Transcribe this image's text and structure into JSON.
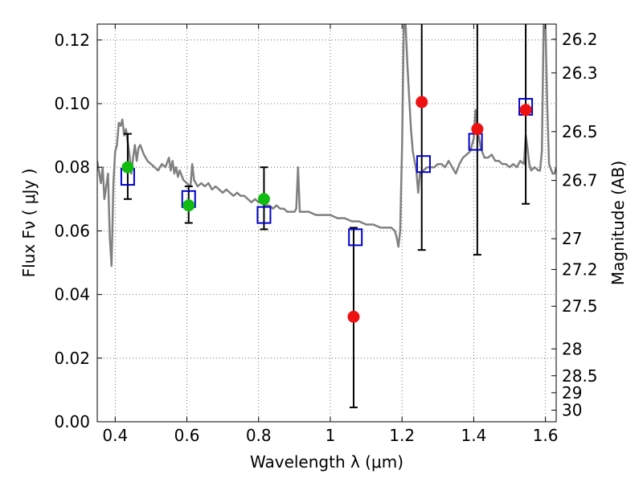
{
  "chart_data": {
    "type": "scatter",
    "xlabel": "Wavelength  λ (μm)",
    "ylabel": "Flux  Fν  ( μJy )",
    "y2label": "Magnitude (AB)",
    "xlim": [
      0.35,
      1.63
    ],
    "ylim": [
      0.0,
      0.125
    ],
    "grid": true,
    "x_ticks": [
      0.4,
      0.6,
      0.8,
      1.0,
      1.2,
      1.4,
      1.6
    ],
    "x_tick_labels": [
      "0.4",
      "0.6",
      "0.8",
      "1",
      "1.2",
      "1.4",
      "1.6"
    ],
    "y_ticks": [
      0.0,
      0.02,
      0.04,
      0.06,
      0.08,
      0.1,
      0.12
    ],
    "y_tick_labels": [
      "0.00",
      "0.02",
      "0.04",
      "0.06",
      "0.08",
      "0.10",
      "0.12"
    ],
    "magnitude_ticks": [
      {
        "label": "26.2",
        "mag": 26.2
      },
      {
        "label": "26.3",
        "mag": 26.3
      },
      {
        "label": "26.5",
        "mag": 26.5
      },
      {
        "label": "26.7",
        "mag": 26.7
      },
      {
        "label": "27",
        "mag": 27.0
      },
      {
        "label": "27.2",
        "mag": 27.2
      },
      {
        "label": "27.5",
        "mag": 27.5
      },
      {
        "label": "28",
        "mag": 28.0
      },
      {
        "label": "28.5",
        "mag": 28.5
      },
      {
        "label": "29",
        "mag": 29.0
      },
      {
        "label": "30",
        "mag": 30.0
      }
    ],
    "colors": {
      "model": "#808080",
      "model_points": "#0000cc",
      "optical_detections": "#11bb11",
      "nir_detections": "#ee1111",
      "errorbar": "#000000",
      "grid": "#555555"
    },
    "model_spectrum": [
      [
        0.35,
        0.082
      ],
      [
        0.36,
        0.075
      ],
      [
        0.365,
        0.08
      ],
      [
        0.37,
        0.07
      ],
      [
        0.38,
        0.078
      ],
      [
        0.385,
        0.058
      ],
      [
        0.39,
        0.049
      ],
      [
        0.395,
        0.075
      ],
      [
        0.4,
        0.085
      ],
      [
        0.405,
        0.087
      ],
      [
        0.41,
        0.094
      ],
      [
        0.415,
        0.093
      ],
      [
        0.42,
        0.095
      ],
      [
        0.425,
        0.09
      ],
      [
        0.43,
        0.092
      ],
      [
        0.435,
        0.088
      ],
      [
        0.44,
        0.084
      ],
      [
        0.445,
        0.078
      ],
      [
        0.45,
        0.083
      ],
      [
        0.455,
        0.087
      ],
      [
        0.46,
        0.082
      ],
      [
        0.465,
        0.086
      ],
      [
        0.47,
        0.087
      ],
      [
        0.48,
        0.084
      ],
      [
        0.49,
        0.082
      ],
      [
        0.5,
        0.081
      ],
      [
        0.51,
        0.08
      ],
      [
        0.52,
        0.079
      ],
      [
        0.53,
        0.081
      ],
      [
        0.54,
        0.08
      ],
      [
        0.55,
        0.083
      ],
      [
        0.555,
        0.079
      ],
      [
        0.56,
        0.082
      ],
      [
        0.565,
        0.078
      ],
      [
        0.57,
        0.08
      ],
      [
        0.575,
        0.077
      ],
      [
        0.58,
        0.079
      ],
      [
        0.59,
        0.076
      ],
      [
        0.6,
        0.075
      ],
      [
        0.61,
        0.074
      ],
      [
        0.615,
        0.081
      ],
      [
        0.62,
        0.076
      ],
      [
        0.63,
        0.074
      ],
      [
        0.64,
        0.075
      ],
      [
        0.65,
        0.074
      ],
      [
        0.66,
        0.075
      ],
      [
        0.67,
        0.073
      ],
      [
        0.68,
        0.074
      ],
      [
        0.69,
        0.073
      ],
      [
        0.7,
        0.072
      ],
      [
        0.71,
        0.073
      ],
      [
        0.72,
        0.072
      ],
      [
        0.73,
        0.071
      ],
      [
        0.74,
        0.072
      ],
      [
        0.75,
        0.071
      ],
      [
        0.76,
        0.071
      ],
      [
        0.77,
        0.07
      ],
      [
        0.78,
        0.069
      ],
      [
        0.79,
        0.07
      ],
      [
        0.8,
        0.069
      ],
      [
        0.81,
        0.069
      ],
      [
        0.82,
        0.068
      ],
      [
        0.83,
        0.068
      ],
      [
        0.84,
        0.067
      ],
      [
        0.85,
        0.068
      ],
      [
        0.86,
        0.067
      ],
      [
        0.87,
        0.067
      ],
      [
        0.88,
        0.066
      ],
      [
        0.89,
        0.066
      ],
      [
        0.9,
        0.066
      ],
      [
        0.905,
        0.067
      ],
      [
        0.91,
        0.08
      ],
      [
        0.915,
        0.066
      ],
      [
        0.92,
        0.066
      ],
      [
        0.94,
        0.066
      ],
      [
        0.96,
        0.065
      ],
      [
        0.98,
        0.065
      ],
      [
        1.0,
        0.065
      ],
      [
        1.02,
        0.064
      ],
      [
        1.04,
        0.064
      ],
      [
        1.06,
        0.063
      ],
      [
        1.08,
        0.063
      ],
      [
        1.1,
        0.062
      ],
      [
        1.12,
        0.062
      ],
      [
        1.14,
        0.061
      ],
      [
        1.16,
        0.061
      ],
      [
        1.17,
        0.061
      ],
      [
        1.18,
        0.06
      ],
      [
        1.185,
        0.058
      ],
      [
        1.19,
        0.055
      ],
      [
        1.195,
        0.06
      ],
      [
        1.2,
        0.086
      ],
      [
        1.205,
        0.125
      ],
      [
        1.21,
        0.125
      ],
      [
        1.215,
        0.112
      ],
      [
        1.22,
        0.102
      ],
      [
        1.225,
        0.092
      ],
      [
        1.23,
        0.085
      ],
      [
        1.24,
        0.079
      ],
      [
        1.245,
        0.072
      ],
      [
        1.25,
        0.078
      ],
      [
        1.26,
        0.079
      ],
      [
        1.27,
        0.08
      ],
      [
        1.28,
        0.08
      ],
      [
        1.29,
        0.08
      ],
      [
        1.3,
        0.081
      ],
      [
        1.31,
        0.081
      ],
      [
        1.32,
        0.08
      ],
      [
        1.33,
        0.082
      ],
      [
        1.34,
        0.08
      ],
      [
        1.35,
        0.078
      ],
      [
        1.36,
        0.081
      ],
      [
        1.37,
        0.083
      ],
      [
        1.38,
        0.084
      ],
      [
        1.39,
        0.085
      ],
      [
        1.4,
        0.089
      ],
      [
        1.405,
        0.098
      ],
      [
        1.41,
        0.092
      ],
      [
        1.42,
        0.086
      ],
      [
        1.43,
        0.083
      ],
      [
        1.44,
        0.083
      ],
      [
        1.45,
        0.084
      ],
      [
        1.46,
        0.082
      ],
      [
        1.47,
        0.082
      ],
      [
        1.48,
        0.081
      ],
      [
        1.49,
        0.081
      ],
      [
        1.5,
        0.08
      ],
      [
        1.51,
        0.081
      ],
      [
        1.52,
        0.08
      ],
      [
        1.53,
        0.082
      ],
      [
        1.54,
        0.081
      ],
      [
        1.545,
        0.09
      ],
      [
        1.55,
        0.086
      ],
      [
        1.555,
        0.081
      ],
      [
        1.56,
        0.079
      ],
      [
        1.57,
        0.08
      ],
      [
        1.58,
        0.079
      ],
      [
        1.585,
        0.079
      ],
      [
        1.59,
        0.085
      ],
      [
        1.595,
        0.125
      ],
      [
        1.6,
        0.125
      ],
      [
        1.605,
        0.1
      ],
      [
        1.61,
        0.081
      ],
      [
        1.62,
        0.078
      ],
      [
        1.625,
        0.078
      ],
      [
        1.63,
        0.08
      ]
    ],
    "model_points": [
      {
        "x": 0.435,
        "y": 0.077
      },
      {
        "x": 0.605,
        "y": 0.07
      },
      {
        "x": 0.815,
        "y": 0.065
      },
      {
        "x": 1.07,
        "y": 0.058
      },
      {
        "x": 1.26,
        "y": 0.081
      },
      {
        "x": 1.405,
        "y": 0.088
      },
      {
        "x": 1.545,
        "y": 0.099
      }
    ],
    "observations": [
      {
        "band": "optical",
        "x": 0.435,
        "y": 0.08,
        "yerr_low": 0.07,
        "yerr_high": 0.0905
      },
      {
        "band": "optical",
        "x": 0.605,
        "y": 0.068,
        "yerr_low": 0.0625,
        "yerr_high": 0.074
      },
      {
        "band": "optical",
        "x": 0.815,
        "y": 0.07,
        "yerr_low": 0.0605,
        "yerr_high": 0.08
      },
      {
        "band": "nir",
        "x": 1.065,
        "y": 0.033,
        "yerr_low": 0.0045,
        "yerr_high": 0.061
      },
      {
        "band": "nir",
        "x": 1.255,
        "y": 0.1005,
        "yerr_low": 0.054,
        "yerr_high": 0.125
      },
      {
        "band": "nir",
        "x": 1.41,
        "y": 0.092,
        "yerr_low": 0.0525,
        "yerr_high": 0.125
      },
      {
        "band": "nir",
        "x": 1.545,
        "y": 0.098,
        "yerr_low": 0.0685,
        "yerr_high": 0.125
      }
    ]
  }
}
